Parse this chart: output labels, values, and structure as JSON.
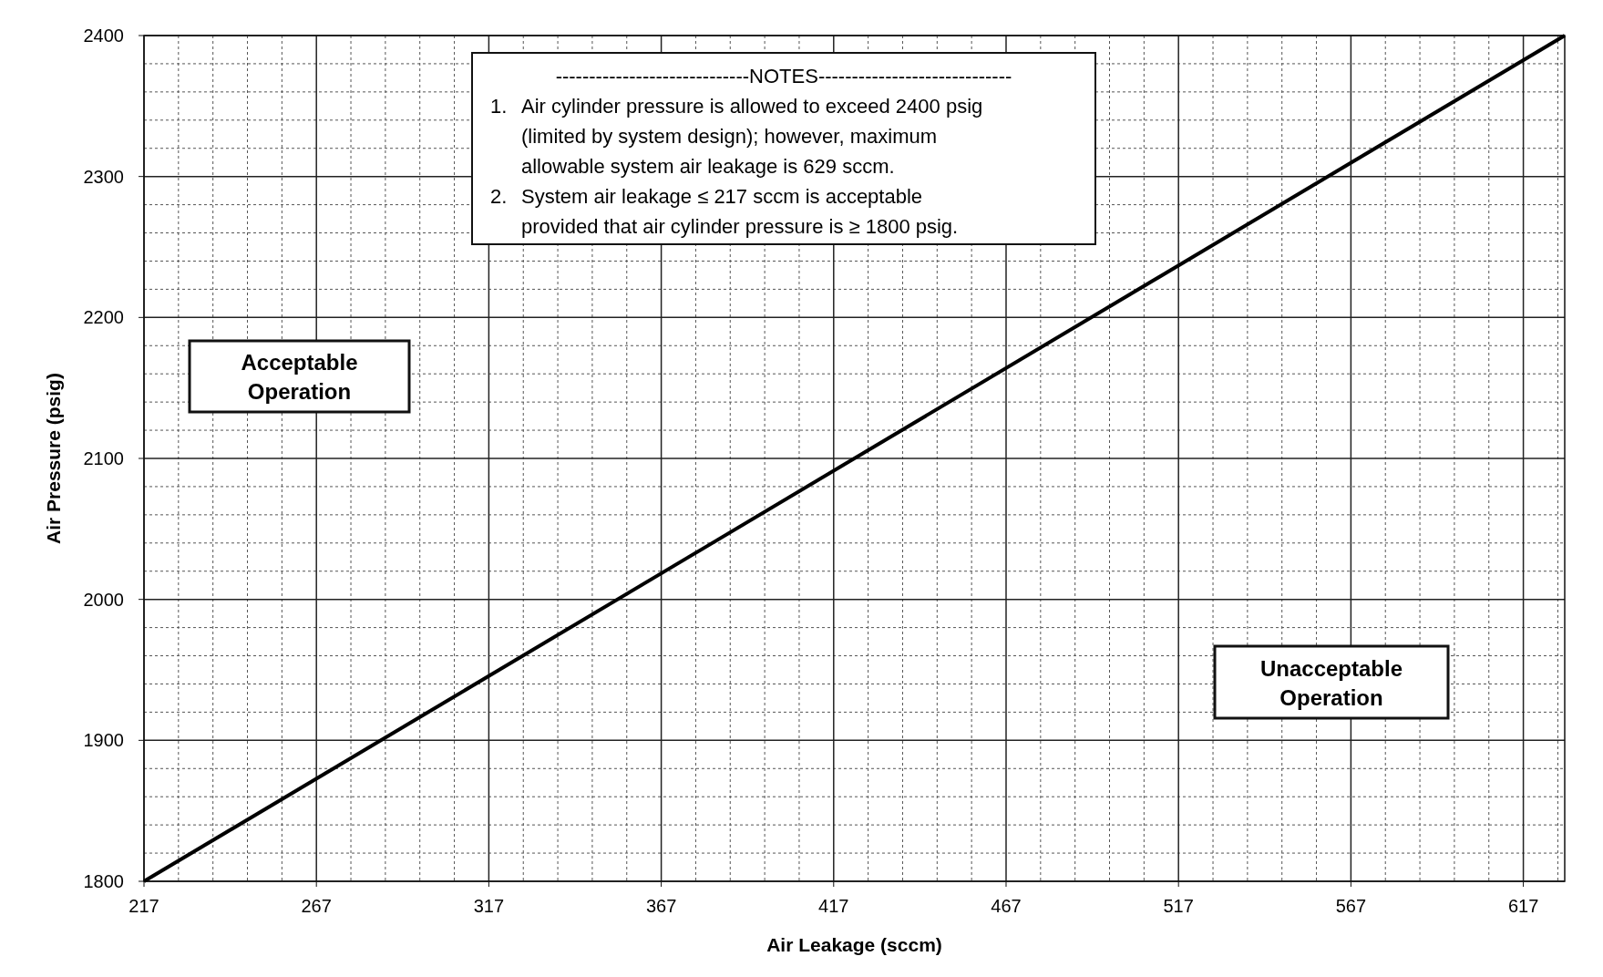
{
  "chart_data": {
    "type": "line",
    "xlabel": "Air Leakage (sccm)",
    "ylabel": "Air Pressure (psig)",
    "x": [
      217,
      629
    ],
    "series": [
      {
        "color": "#000000",
        "values": [
          1800,
          2400
        ]
      }
    ],
    "xlim": [
      217,
      629
    ],
    "xticks": [
      217,
      267,
      317,
      367,
      417,
      467,
      517,
      567,
      617
    ],
    "ylim": [
      1800,
      2400
    ],
    "yticks": [
      1800,
      1900,
      2000,
      2100,
      2200,
      2300,
      2400
    ],
    "grid": true,
    "marker": "none",
    "line_style": "solid",
    "annotations": [
      "-----------------------------NOTES-----------------------------",
      "1. Air cylinder pressure is allowed to exceed 2400 psig (limited by system design); however, maximum allowable system air leakage is 629 sccm.",
      "2. System air leakage ≤ 217 sccm is acceptable provided that air cylinder pressure is ≥ 1800 psig.",
      "Acceptable Operation",
      "Unacceptable Operation"
    ]
  }
}
